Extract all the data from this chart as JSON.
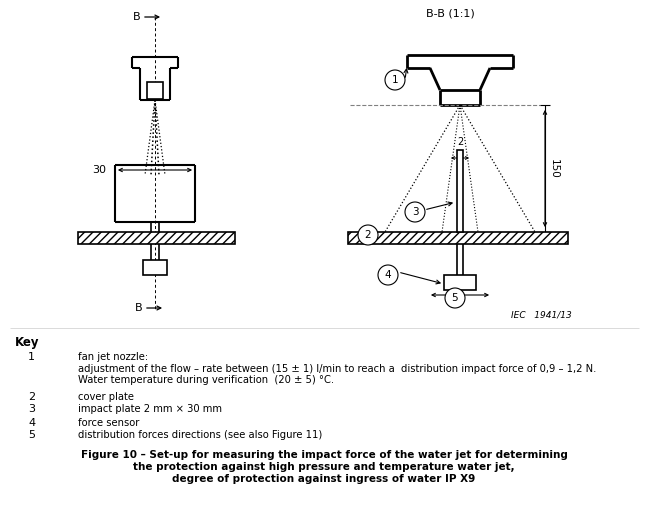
{
  "bg_color": "#ffffff",
  "key_title": "Key",
  "key_items": [
    {
      "num": "1",
      "text_lines": [
        "fan jet nozzle:",
        "adjustment of the flow – rate between (15 ± 1) l/min to reach a  distribution impact force of 0,9 – 1,2 N.",
        "Water temperature during verification  (20 ± 5) °C."
      ]
    },
    {
      "num": "2",
      "text_lines": [
        "cover plate"
      ]
    },
    {
      "num": "3",
      "text_lines": [
        "impact plate 2 mm × 30 mm"
      ]
    },
    {
      "num": "4",
      "text_lines": [
        "force sensor"
      ]
    },
    {
      "num": "5",
      "text_lines": [
        "distribution forces directions (see also Figure 11)"
      ]
    }
  ],
  "caption_line1": "Figure 10 – Set-up for measuring the impact force of the water jet for determining",
  "caption_line2": "the protection against high pressure and temperature water jet,",
  "caption_line3": "degree of protection against ingress of water IP X9",
  "label_bb": "B-B (1:1)",
  "label_30": "30",
  "label_150": "150",
  "iec_label": "IEC   1941/13"
}
